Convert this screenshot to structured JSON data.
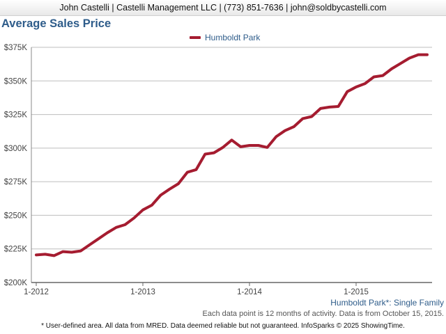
{
  "header": {
    "contact": "John Castelli | Castelli Management LLC | (773) 851-7636 | john@soldbycastelli.com"
  },
  "chart_data": {
    "type": "line",
    "title": "Average Sales Price",
    "xlabel": "",
    "ylabel": "",
    "ylim": [
      200000,
      375000
    ],
    "yticks": [
      200000,
      225000,
      250000,
      275000,
      300000,
      325000,
      350000,
      375000
    ],
    "ytick_labels": [
      "$200K",
      "$225K",
      "$250K",
      "$275K",
      "$300K",
      "$325K",
      "$350K",
      "$375K"
    ],
    "xticks": [
      "1-2012",
      "1-2013",
      "1-2014",
      "1-2015"
    ],
    "grid": true,
    "legend": "top-center",
    "series": [
      {
        "name": "Humboldt Park",
        "color": "#a51c30",
        "x": [
          "2012-01",
          "2012-02",
          "2012-03",
          "2012-04",
          "2012-05",
          "2012-06",
          "2012-07",
          "2012-08",
          "2012-09",
          "2012-10",
          "2012-11",
          "2012-12",
          "2013-01",
          "2013-02",
          "2013-03",
          "2013-04",
          "2013-05",
          "2013-06",
          "2013-07",
          "2013-08",
          "2013-09",
          "2013-10",
          "2013-11",
          "2013-12",
          "2014-01",
          "2014-02",
          "2014-03",
          "2014-04",
          "2014-05",
          "2014-06",
          "2014-07",
          "2014-08",
          "2014-09",
          "2014-10",
          "2014-11",
          "2014-12",
          "2015-01",
          "2015-02",
          "2015-03",
          "2015-04",
          "2015-05",
          "2015-06",
          "2015-07",
          "2015-08",
          "2015-09"
        ],
        "values": [
          220500,
          221000,
          220000,
          223000,
          222500,
          223500,
          228000,
          232500,
          237000,
          241000,
          243000,
          248000,
          254000,
          257500,
          265000,
          269500,
          273500,
          282000,
          284000,
          295500,
          296500,
          300500,
          306000,
          301000,
          302000,
          302000,
          300500,
          308500,
          313000,
          316000,
          322000,
          323500,
          329500,
          330500,
          331000,
          342000,
          345500,
          348000,
          353000,
          354000,
          359000,
          363000,
          367000,
          369500,
          369500
        ]
      }
    ]
  },
  "caption": "Humboldt Park*: Single Family",
  "note": "Each data point is 12 months of activity. Data is from October 15, 2015.",
  "footer": "* User-defined area. All data from MRED. Data deemed reliable but not guaranteed. InfoSparks © 2025 ShowingTime."
}
